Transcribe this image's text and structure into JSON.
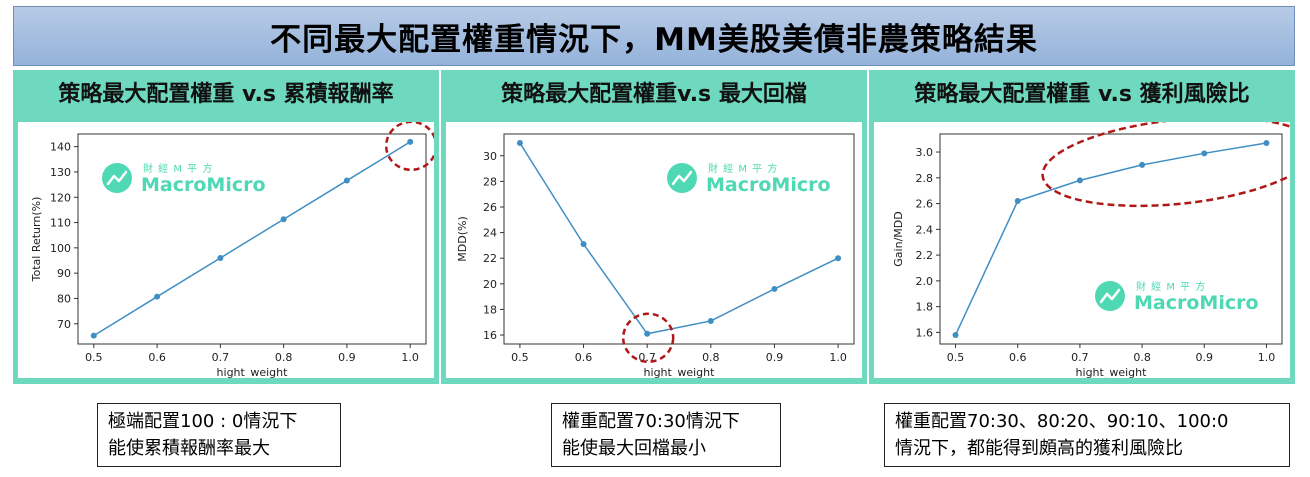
{
  "header": {
    "title": "不同最大配置權重情況下，MM美股美債非農策略結果"
  },
  "watermark": {
    "sub": "財 經 M 平 方",
    "brand": "MacroMicro",
    "color": "#4fd8b4",
    "icon": "chart-logo-icon"
  },
  "panels": [
    {
      "title": "策略最大配置權重 v.s 累積報酬率",
      "note": [
        "極端配置100 : 0情況下",
        "能使累積報酬率最大"
      ]
    },
    {
      "title": "策略最大配置權重v.s 最大回檔",
      "note": [
        "權重配置70:30情況下",
        "能使最大回檔最小"
      ]
    },
    {
      "title": "策略最大配置權重 v.s 獲利風險比",
      "note": [
        "權重配置70:30、80:20、90:10、100:0",
        "情況下，都能得到頗高的獲利風險比"
      ]
    }
  ],
  "chart_data": [
    {
      "type": "line",
      "x": [
        0.5,
        0.6,
        0.7,
        0.8,
        0.9,
        1.0
      ],
      "series": [
        {
          "values": [
            65.3,
            80.7,
            96.0,
            111.3,
            126.6,
            141.9
          ]
        }
      ],
      "xlabel": "hight_weight",
      "ylabel": "Total Return(%)",
      "xlim": [
        0.475,
        1.025
      ],
      "ylim": [
        62,
        145
      ],
      "xticks": [
        "0.5",
        "0.6",
        "0.7",
        "0.8",
        "0.9",
        "1.0"
      ],
      "yticks": [
        70,
        80,
        90,
        100,
        110,
        120,
        130,
        140
      ],
      "line_color": "#3f8fc4",
      "highlight": {
        "kind": "circle",
        "x": [
          1.0
        ],
        "color": "#b01818"
      }
    },
    {
      "type": "line",
      "x": [
        0.5,
        0.6,
        0.7,
        0.8,
        0.9,
        1.0
      ],
      "series": [
        {
          "values": [
            31.0,
            23.1,
            16.1,
            17.1,
            19.6,
            22.0
          ]
        }
      ],
      "xlabel": "hight_weight",
      "ylabel": "MDD(%)",
      "xlim": [
        0.475,
        1.025
      ],
      "ylim": [
        15.3,
        31.7
      ],
      "xticks": [
        "0.5",
        "0.6",
        "0.7",
        "0.8",
        "0.9",
        "1.0"
      ],
      "yticks": [
        16,
        18,
        20,
        22,
        24,
        26,
        28,
        30
      ],
      "line_color": "#3f8fc4",
      "highlight": {
        "kind": "circle",
        "x": [
          0.7
        ],
        "color": "#b01818"
      }
    },
    {
      "type": "line",
      "x": [
        0.5,
        0.6,
        0.7,
        0.8,
        0.9,
        1.0
      ],
      "series": [
        {
          "values": [
            1.58,
            2.62,
            2.78,
            2.9,
            2.99,
            3.07
          ]
        }
      ],
      "xlabel": "hight_weight",
      "ylabel": "Gain/MDD",
      "xlim": [
        0.475,
        1.025
      ],
      "ylim": [
        1.51,
        3.14
      ],
      "xticks": [
        "0.5",
        "0.6",
        "0.7",
        "0.8",
        "0.9",
        "1.0"
      ],
      "yticks": [
        "1.6",
        "1.8",
        "2.0",
        "2.2",
        "2.4",
        "2.6",
        "2.8",
        "3.0"
      ],
      "line_color": "#3f8fc4",
      "highlight": {
        "kind": "ellipse",
        "x": [
          0.7,
          0.8,
          0.9,
          1.0
        ],
        "color": "#b01818"
      }
    }
  ]
}
